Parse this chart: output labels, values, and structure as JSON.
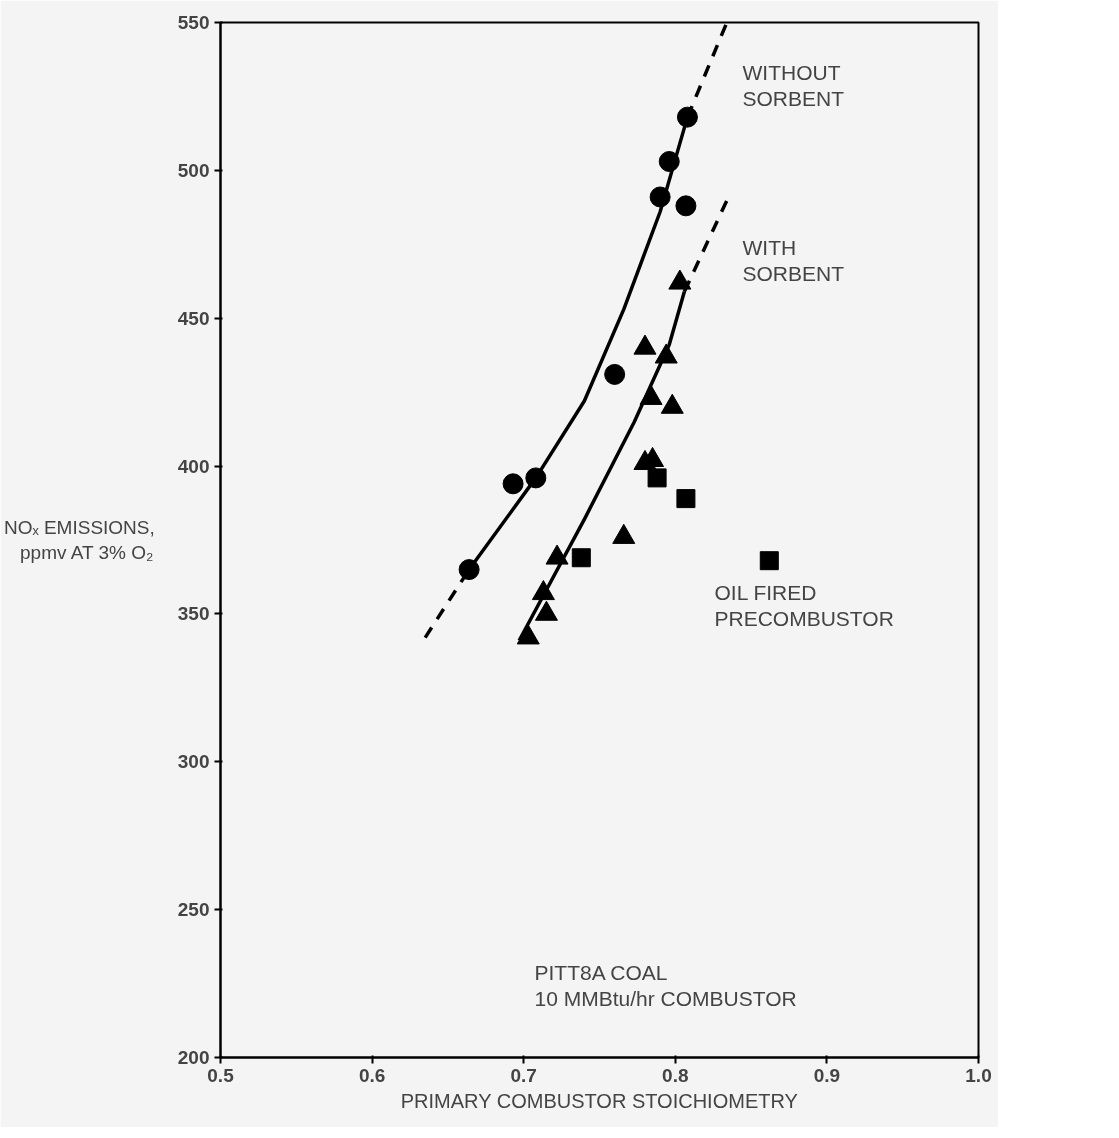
{
  "chart_data": {
    "type": "scatter",
    "xlabel": "PRIMARY COMBUSTOR STOICHIOMETRY",
    "ylabel": "NOₓ EMISSIONS,\nppmv AT 3% O₂",
    "xlim": [
      0.5,
      1.0
    ],
    "ylim": [
      200,
      550
    ],
    "xticks": [
      0.5,
      0.6,
      0.7,
      0.8,
      0.9,
      {
        "value": 1.0,
        "label": "1.0"
      }
    ],
    "yticks": [
      200,
      250,
      300,
      350,
      400,
      450,
      500,
      550
    ],
    "series": [
      {
        "marker": "circle",
        "color": "#000000",
        "x": [
          0.808,
          0.796,
          0.79,
          0.807,
          0.76,
          0.693,
          0.708,
          0.664
        ],
        "values": [
          518,
          503,
          491,
          488,
          431,
          394,
          396,
          365
        ]
      },
      {
        "marker": "triangle",
        "color": "#000000",
        "x": [
          0.803,
          0.78,
          0.794,
          0.784,
          0.798,
          0.78,
          0.785,
          0.766,
          0.722,
          0.713,
          0.715,
          0.703
        ],
        "values": [
          462,
          440,
          437,
          423,
          420,
          401,
          402,
          376,
          369,
          357,
          350,
          342
        ]
      },
      {
        "marker": "square",
        "color": "#000000",
        "x": [
          0.738,
          0.788,
          0.807,
          0.862
        ],
        "values": [
          369,
          396,
          389,
          368
        ]
      },
      {
        "type": "line",
        "marker": "none",
        "line_style": "dashed",
        "color": "#000000",
        "x": [
          0.635,
          0.664
        ],
        "values": [
          342,
          365
        ]
      },
      {
        "type": "line",
        "marker": "none",
        "line_style": "solid",
        "color": "#000000",
        "x": [
          0.664,
          0.708,
          0.74,
          0.766,
          0.79,
          0.808
        ],
        "values": [
          365,
          396,
          422,
          453,
          486,
          518
        ]
      },
      {
        "type": "line",
        "marker": "none",
        "line_style": "dashed",
        "color": "#000000",
        "x": [
          0.808,
          0.834
        ],
        "values": [
          518,
          550
        ]
      },
      {
        "type": "line",
        "marker": "none",
        "line_style": "solid",
        "color": "#000000",
        "x": [
          0.697,
          0.74,
          0.773,
          0.796,
          0.806
        ],
        "values": [
          341,
          382,
          415,
          441,
          459
        ]
      },
      {
        "type": "line",
        "marker": "none",
        "line_style": "dashed",
        "color": "#000000",
        "x": [
          0.806,
          0.836
        ],
        "values": [
          459,
          492
        ]
      }
    ],
    "annotations": [
      "WITHOUT\nSORBENT",
      "WITH\nSORBENT",
      "OIL FIRED\nPRECOMBUSTOR",
      "PITT8A COAL\n10 MMBtu/hr COMBUSTOR"
    ]
  }
}
